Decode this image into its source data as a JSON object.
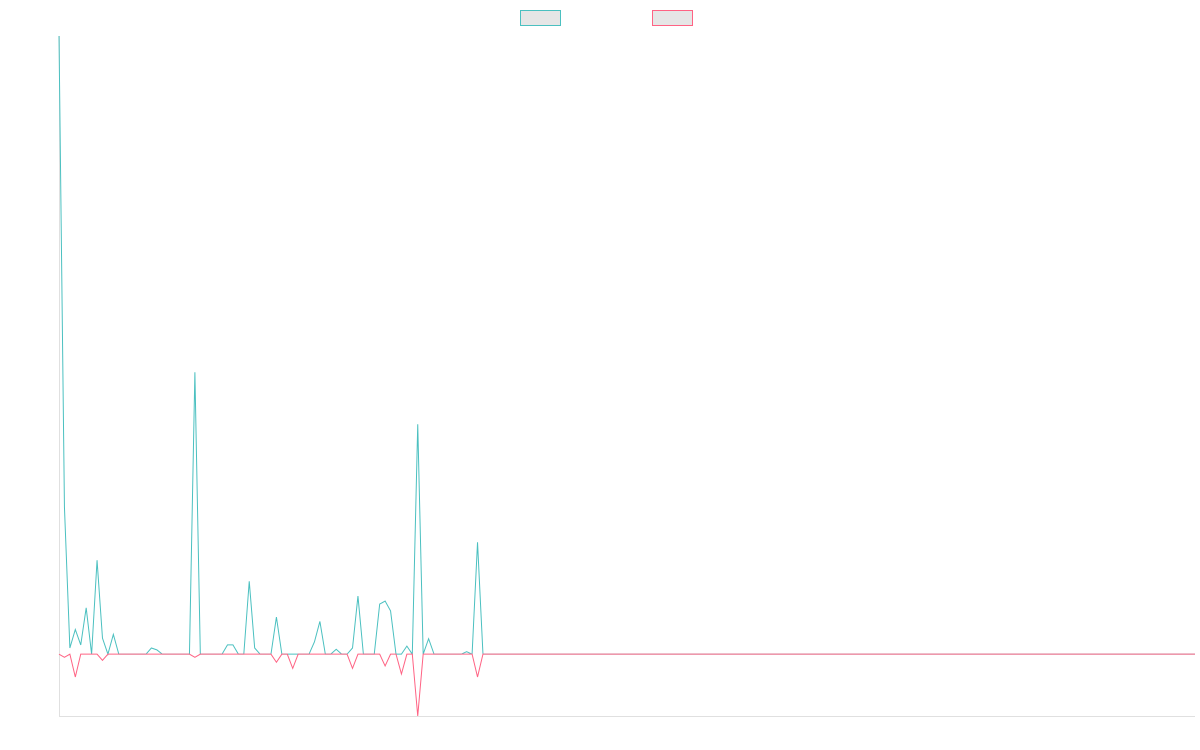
{
  "chart_data": {
    "type": "line",
    "ylim": [
      -10,
      100
    ],
    "legend": "top",
    "series": [
      {
        "color": "#4bc0c0",
        "values": [
          100,
          23.8,
          1,
          4,
          1.5,
          7.5,
          0,
          15.2,
          2.6,
          0,
          3.2,
          0,
          0,
          0,
          0,
          0,
          0,
          1,
          0.7,
          0,
          0,
          0,
          0,
          0,
          0,
          45.6,
          0,
          0,
          0,
          0,
          0,
          1.5,
          1.5,
          0,
          0,
          11.8,
          1,
          0,
          0,
          0,
          6,
          0,
          0,
          0,
          0,
          0,
          0,
          2,
          5.3,
          0,
          0,
          0.8,
          0,
          0,
          1,
          9.4,
          0,
          0,
          0,
          8.1,
          8.6,
          7,
          0,
          0,
          1.3,
          0,
          37.2,
          0,
          2.5,
          0,
          0,
          0,
          0,
          0,
          0,
          0.4,
          0,
          18.1,
          0,
          0,
          0,
          0,
          0,
          0,
          0,
          0,
          0,
          0,
          0,
          0,
          0,
          0,
          0,
          0,
          0,
          0,
          0,
          0,
          0,
          0,
          0,
          0,
          0,
          0,
          0,
          0,
          0,
          0,
          0,
          0,
          0,
          0,
          0,
          0,
          0,
          0,
          0,
          0,
          0,
          0,
          0,
          0,
          0,
          0,
          0,
          0,
          0,
          0,
          0,
          0,
          0,
          0,
          0,
          0,
          0,
          0,
          0,
          0,
          0,
          0,
          0,
          0,
          0,
          0,
          0,
          0,
          0,
          0,
          0,
          0,
          0,
          0,
          0,
          0,
          0,
          0,
          0,
          0,
          0,
          0,
          0,
          0,
          0,
          0,
          0,
          0,
          0,
          0,
          0,
          0,
          0,
          0,
          0,
          0,
          0,
          0,
          0,
          0,
          0,
          0,
          0,
          0,
          0,
          0,
          0,
          0,
          0,
          0,
          0,
          0,
          0,
          0,
          0,
          0,
          0,
          0,
          0,
          0,
          0,
          0,
          0,
          0,
          0,
          0,
          0,
          0,
          0,
          0,
          0,
          0
        ]
      },
      {
        "color": "#ff6384",
        "values": [
          0,
          -0.5,
          0,
          -3.7,
          0,
          0,
          0,
          0,
          -1,
          0,
          0,
          0,
          0,
          0,
          0,
          0,
          0,
          0,
          0,
          0,
          0,
          0,
          0,
          0,
          0,
          -0.5,
          0,
          0,
          0,
          0,
          0,
          0,
          0,
          0,
          0,
          0,
          0,
          0,
          0,
          0,
          -1.3,
          0,
          0,
          -2.3,
          0,
          0,
          0,
          0,
          0,
          0,
          0,
          0,
          0,
          0,
          -2.3,
          0,
          0,
          0,
          0,
          0,
          -1.9,
          0,
          0,
          -3.2,
          0,
          0,
          -10,
          0,
          0,
          0,
          0,
          0,
          0,
          0,
          0,
          0,
          0,
          -3.7,
          0,
          0,
          0,
          0,
          0,
          0,
          0,
          0,
          0,
          0,
          0,
          0,
          0,
          0,
          0,
          0,
          0,
          0,
          0,
          0,
          0,
          0,
          0,
          0,
          0,
          0,
          0,
          0,
          0,
          0,
          0,
          0,
          0,
          0,
          0,
          0,
          0,
          0,
          0,
          0,
          0,
          0,
          0,
          0,
          0,
          0,
          0,
          0,
          0,
          0,
          0,
          0,
          0,
          0,
          0,
          0,
          0,
          0,
          0,
          0,
          0,
          0,
          0,
          0,
          0,
          0,
          0,
          0,
          0,
          0,
          0,
          0,
          0,
          0,
          0,
          0,
          0,
          0,
          0,
          0,
          0,
          0,
          0,
          0,
          0,
          0,
          0,
          0,
          0,
          0,
          0,
          0,
          0,
          0,
          0,
          0,
          0,
          0,
          0,
          0,
          0,
          0,
          0,
          0,
          0,
          0,
          0,
          0,
          0,
          0,
          0,
          0,
          0,
          0,
          0,
          0,
          0,
          0,
          0,
          0,
          0,
          0,
          0,
          0,
          0,
          0,
          0,
          0,
          0,
          0,
          0,
          0
        ]
      }
    ]
  }
}
